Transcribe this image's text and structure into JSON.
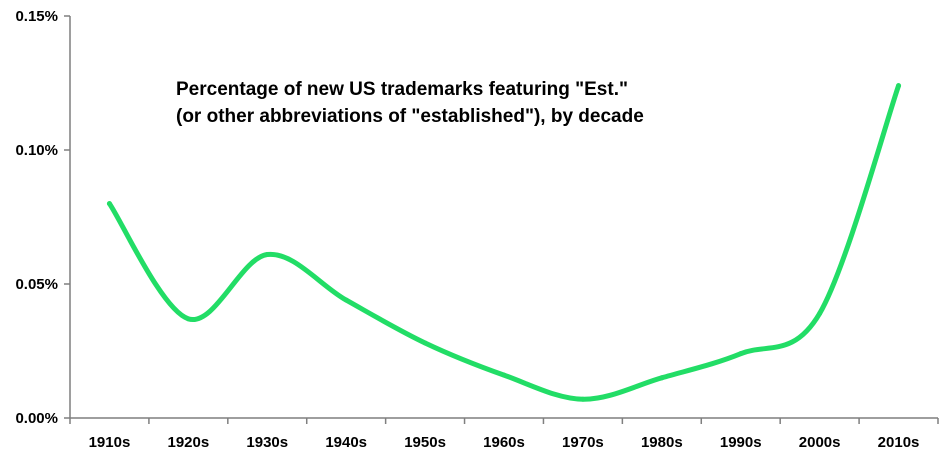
{
  "chart_data": {
    "type": "line",
    "title_lines": [
      "Percentage of new US trademarks featuring \"Est.\"",
      "(or other abbreviations of \"established\"), by decade"
    ],
    "xlabel": "",
    "ylabel": "",
    "categories": [
      "1910s",
      "1920s",
      "1930s",
      "1940s",
      "1950s",
      "1960s",
      "1970s",
      "1980s",
      "1990s",
      "2000s",
      "2010s"
    ],
    "series": [
      {
        "values": [
          0.08,
          0.037,
          0.061,
          0.044,
          0.028,
          0.016,
          0.007,
          0.015,
          0.024,
          0.039,
          0.124
        ],
        "color": "#22dd66",
        "smooth": true
      }
    ],
    "ylim": [
      0,
      0.15
    ],
    "yticks": [
      0,
      0.05,
      0.1,
      0.15
    ],
    "ytick_labels": [
      "0.00%",
      "0.05%",
      "0.10%",
      "0.15%"
    ],
    "grid": false,
    "legend": "none"
  }
}
